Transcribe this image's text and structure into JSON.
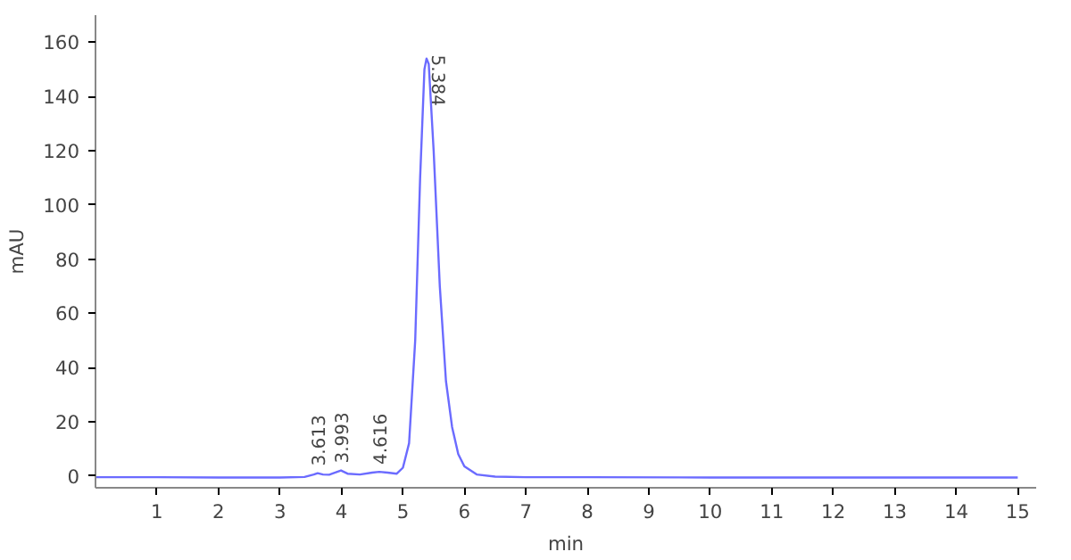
{
  "chart_data": {
    "type": "line",
    "xlabel": "min",
    "ylabel": "mAU",
    "x": [
      0,
      1,
      2,
      3,
      3.4,
      3.55,
      3.613,
      3.7,
      3.8,
      3.9,
      3.993,
      4.1,
      4.3,
      4.5,
      4.616,
      4.75,
      4.9,
      5.0,
      5.1,
      5.2,
      5.28,
      5.35,
      5.384,
      5.42,
      5.5,
      5.6,
      5.7,
      5.8,
      5.9,
      6.0,
      6.2,
      6.5,
      7,
      8,
      10,
      12,
      15
    ],
    "series": [
      {
        "color": "#6b6bff",
        "values": [
          -0.5,
          -0.5,
          -0.6,
          -0.6,
          -0.4,
          0.5,
          1.0,
          0.5,
          0.4,
          1.2,
          2.0,
          0.8,
          0.5,
          1.2,
          1.5,
          1.2,
          0.8,
          3,
          12,
          50,
          110,
          150,
          154,
          152,
          120,
          70,
          35,
          18,
          8,
          3.5,
          0.5,
          -0.3,
          -0.5,
          -0.5,
          -0.6,
          -0.6,
          -0.6
        ]
      }
    ],
    "xlim": [
      0,
      15.3
    ],
    "ylim": [
      -4.4,
      170
    ],
    "xticks": [
      1,
      2,
      3,
      4,
      5,
      6,
      7,
      8,
      9,
      10,
      11,
      12,
      13,
      14,
      15
    ],
    "yticks": [
      0,
      20,
      40,
      60,
      80,
      100,
      120,
      140,
      160
    ],
    "annotations": [
      {
        "text": "3.613",
        "x": 3.613,
        "y": 1.0
      },
      {
        "text": "3.993",
        "x": 3.993,
        "y": 2.0
      },
      {
        "text": "4.616",
        "x": 4.616,
        "y": 1.5
      },
      {
        "text": "5.384",
        "x": 5.384,
        "y": 154
      }
    ]
  }
}
